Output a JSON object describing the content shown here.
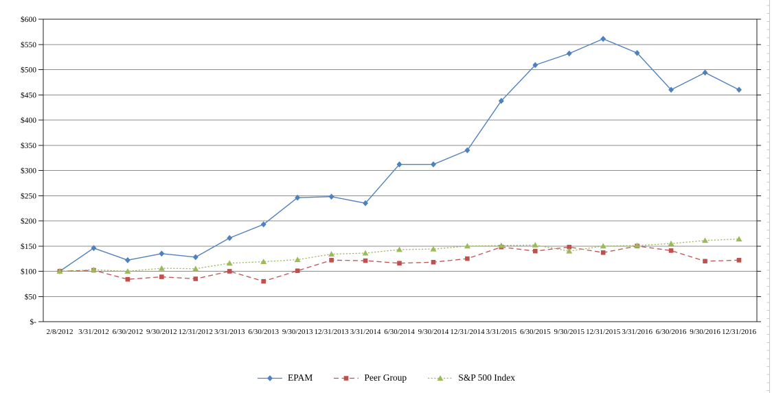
{
  "page": {
    "background": "#ffffff",
    "description": "Cumulative total return comparison line chart (indexed to $100 on 2/8/2012)"
  },
  "chart_data": {
    "type": "line",
    "title": "",
    "xlabel": "",
    "ylabel": "",
    "x_categories": [
      "2/8/2012",
      "3/31/2012",
      "6/30/2012",
      "9/30/2012",
      "12/31/2012",
      "3/31/2013",
      "6/30/2013",
      "9/30/2013",
      "12/31/2013",
      "3/31/2014",
      "6/30/2014",
      "9/30/2014",
      "12/31/2014",
      "3/31/2015",
      "6/30/2015",
      "9/30/2015",
      "12/31/2015",
      "3/31/2016",
      "6/30/2016",
      "9/30/2016",
      "12/31/2016"
    ],
    "series": [
      {
        "name": "EPAM",
        "color": "#4F81BD",
        "line_style": "solid",
        "marker": "diamond",
        "values": [
          100,
          146,
          122,
          135,
          128,
          166,
          193,
          246,
          248,
          235,
          312,
          312,
          340,
          438,
          509,
          532,
          561,
          533,
          460,
          494,
          460
        ]
      },
      {
        "name": "Peer Group",
        "color": "#C0504D",
        "line_style": "dashed",
        "marker": "square",
        "values": [
          100,
          102,
          84,
          89,
          85,
          100,
          80,
          101,
          122,
          121,
          116,
          118,
          125,
          148,
          140,
          148,
          137,
          150,
          141,
          120,
          122
        ]
      },
      {
        "name": "S&P 500 Index",
        "color": "#9BBB59",
        "line_style": "dotted",
        "marker": "triangle",
        "values": [
          100,
          103,
          100,
          106,
          105,
          116,
          119,
          123,
          134,
          136,
          143,
          144,
          150,
          151,
          152,
          140,
          150,
          151,
          155,
          161,
          164
        ]
      }
    ],
    "y_axis": {
      "min": 0,
      "max": 600,
      "step": 50,
      "tick_labels": [
        "$-",
        "$50",
        "$100",
        "$150",
        "$200",
        "$250",
        "$300",
        "$350",
        "$400",
        "$450",
        "$500",
        "$550",
        "$600"
      ]
    },
    "grid": "horizontal",
    "legend_position": "bottom"
  },
  "colors": {
    "gridline": "#8C8C8C",
    "axis_border": "#1F1F1F",
    "tick": "#1F1F1F",
    "text": "#000000",
    "page_edge": "#C9C9C9"
  }
}
